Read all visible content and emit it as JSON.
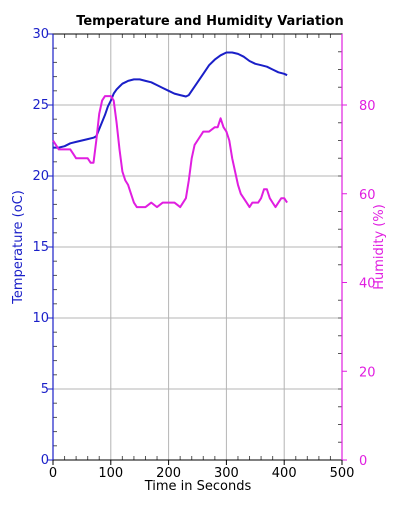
{
  "chart_data": {
    "type": "line",
    "title": "Temperature and Humidity Variation",
    "xlabel": "Time in Seconds",
    "ylabel_left": "Temperature (oC)",
    "ylabel_right": "Humidity (%)",
    "xlim": [
      0,
      500
    ],
    "ylim_left": [
      0,
      30
    ],
    "ylim_right": [
      0,
      96
    ],
    "x_ticks": [
      0,
      100,
      200,
      300,
      400,
      500
    ],
    "y_left_ticks": [
      0,
      5,
      10,
      15,
      20,
      25,
      30
    ],
    "y_right_ticks": [
      0,
      20,
      40,
      60,
      80
    ],
    "grid": true,
    "colors": {
      "temperature": "#1a1fc8",
      "humidity": "#e01ee0",
      "grid": "#b4b4b4"
    },
    "series": [
      {
        "axis": "left",
        "x": [
          0,
          10,
          20,
          30,
          40,
          50,
          60,
          70,
          75,
          80,
          85,
          90,
          95,
          100,
          105,
          110,
          115,
          120,
          130,
          140,
          150,
          160,
          170,
          180,
          190,
          200,
          210,
          220,
          230,
          235,
          240,
          250,
          260,
          270,
          280,
          290,
          300,
          310,
          320,
          330,
          340,
          350,
          360,
          370,
          380,
          390,
          400,
          405
        ],
        "y": [
          22.0,
          22.0,
          22.1,
          22.3,
          22.4,
          22.5,
          22.6,
          22.7,
          22.8,
          23.3,
          23.8,
          24.3,
          24.9,
          25.3,
          25.8,
          26.1,
          26.3,
          26.5,
          26.7,
          26.8,
          26.8,
          26.7,
          26.6,
          26.4,
          26.2,
          26.0,
          25.8,
          25.7,
          25.6,
          25.7,
          26.0,
          26.6,
          27.2,
          27.8,
          28.2,
          28.5,
          28.7,
          28.7,
          28.6,
          28.4,
          28.1,
          27.9,
          27.8,
          27.7,
          27.5,
          27.3,
          27.2,
          27.1
        ]
      },
      {
        "axis": "right",
        "x": [
          0,
          5,
          10,
          20,
          30,
          35,
          40,
          50,
          60,
          65,
          70,
          75,
          80,
          85,
          90,
          95,
          100,
          105,
          110,
          115,
          120,
          125,
          130,
          135,
          140,
          145,
          150,
          160,
          170,
          180,
          190,
          200,
          210,
          220,
          225,
          230,
          235,
          240,
          245,
          250,
          255,
          260,
          270,
          280,
          285,
          290,
          295,
          300,
          305,
          310,
          315,
          320,
          325,
          330,
          335,
          340,
          345,
          350,
          355,
          360,
          365,
          370,
          375,
          380,
          385,
          390,
          395,
          400,
          405
        ],
        "y": [
          72,
          71,
          70,
          70,
          70,
          69,
          68,
          68,
          68,
          67,
          67,
          72,
          78,
          81,
          82,
          82,
          82,
          81,
          76,
          70,
          65,
          63,
          62,
          60,
          58,
          57,
          57,
          57,
          58,
          57,
          58,
          58,
          58,
          57,
          58,
          59,
          63,
          68,
          71,
          72,
          73,
          74,
          74,
          75,
          75,
          77,
          75,
          74,
          72,
          68,
          65,
          62,
          60,
          59,
          58,
          57,
          58,
          58,
          58,
          59,
          61,
          61,
          59,
          58,
          57,
          58,
          59,
          59,
          58
        ]
      }
    ]
  }
}
